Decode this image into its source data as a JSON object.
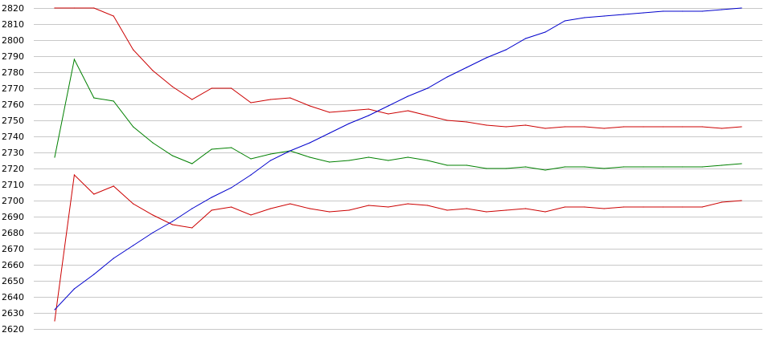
{
  "chart_data": {
    "type": "line",
    "title": "",
    "xlabel": "",
    "ylabel": "",
    "ylim": [
      2620,
      2820
    ],
    "yticks": [
      2620,
      2630,
      2640,
      2650,
      2660,
      2670,
      2680,
      2690,
      2700,
      2710,
      2720,
      2730,
      2740,
      2750,
      2760,
      2770,
      2780,
      2790,
      2800,
      2810,
      2820
    ],
    "grid": true,
    "legend": "none",
    "x": [
      1,
      2,
      3,
      4,
      5,
      6,
      7,
      8,
      9,
      10,
      11,
      12,
      13,
      14,
      15,
      16,
      17,
      18,
      19,
      20,
      21,
      22,
      23,
      24,
      25,
      26,
      27,
      28,
      29,
      30,
      31,
      32,
      33,
      34,
      35,
      36
    ],
    "series": [
      {
        "color": "#cc0000",
        "values": [
          2820,
          2820,
          2820,
          2815,
          2794,
          2781,
          2771,
          2763,
          2770,
          2770,
          2761,
          2763,
          2764,
          2759,
          2755,
          2756,
          2757,
          2754,
          2756,
          2753,
          2750,
          2749,
          2747,
          2746,
          2747,
          2745,
          2746,
          2746,
          2745,
          2746,
          2746,
          2746,
          2746,
          2746,
          2745,
          2746
        ]
      },
      {
        "color": "#008000",
        "values": [
          2727,
          2788,
          2764,
          2762,
          2746,
          2736,
          2728,
          2723,
          2732,
          2733,
          2726,
          2729,
          2731,
          2727,
          2724,
          2725,
          2727,
          2725,
          2727,
          2725,
          2722,
          2722,
          2720,
          2720,
          2721,
          2719,
          2721,
          2721,
          2720,
          2721,
          2721,
          2721,
          2721,
          2721,
          2722,
          2723
        ]
      },
      {
        "color": "#cc0000",
        "values": [
          2625,
          2716,
          2704,
          2709,
          2698,
          2691,
          2685,
          2683,
          2694,
          2696,
          2691,
          2695,
          2698,
          2695,
          2693,
          2694,
          2697,
          2696,
          2698,
          2697,
          2694,
          2695,
          2693,
          2694,
          2695,
          2693,
          2696,
          2696,
          2695,
          2696,
          2696,
          2696,
          2696,
          2696,
          2699,
          2700
        ]
      },
      {
        "color": "#0000cc",
        "values": [
          2632,
          2645,
          2654,
          2664,
          2672,
          2680,
          2687,
          2695,
          2702,
          2708,
          2716,
          2725,
          2731,
          2736,
          2742,
          2748,
          2753,
          2759,
          2765,
          2770,
          2777,
          2783,
          2789,
          2794,
          2801,
          2805,
          2812,
          2814,
          2815,
          2816,
          2817,
          2818,
          2818,
          2818,
          2819,
          2820
        ]
      }
    ]
  }
}
